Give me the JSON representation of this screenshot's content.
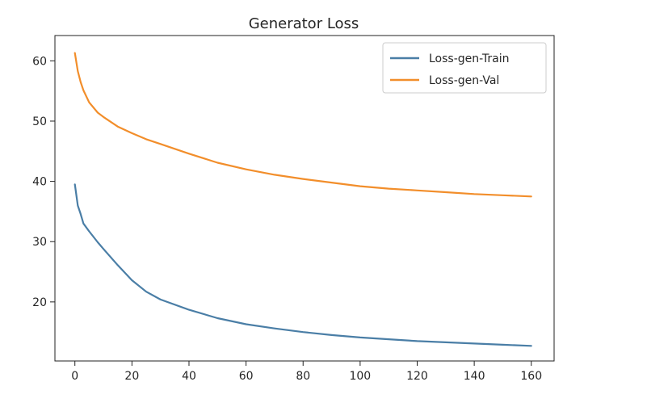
{
  "chart_data": {
    "type": "line",
    "title": "Generator Loss",
    "xlabel": "",
    "ylabel": "",
    "xlim": [
      -7,
      168
    ],
    "ylim": [
      10.2,
      64.2
    ],
    "xticks": [
      0,
      20,
      40,
      60,
      80,
      100,
      120,
      140,
      160
    ],
    "yticks": [
      20,
      30,
      40,
      50,
      60
    ],
    "grid": false,
    "legend_position": "top-right",
    "series": [
      {
        "name": "Loss-gen-Train",
        "color": "#4a7ea6",
        "x": [
          0,
          1,
          2,
          3,
          5,
          8,
          10,
          15,
          20,
          25,
          30,
          40,
          50,
          60,
          70,
          80,
          90,
          100,
          110,
          120,
          130,
          140,
          150,
          160
        ],
        "y": [
          39.5,
          36.0,
          34.6,
          33.0,
          31.7,
          29.9,
          28.8,
          26.1,
          23.6,
          21.7,
          20.4,
          18.7,
          17.3,
          16.3,
          15.6,
          15.0,
          14.5,
          14.1,
          13.8,
          13.5,
          13.3,
          13.1,
          12.9,
          12.7
        ]
      },
      {
        "name": "Loss-gen-Val",
        "color": "#f28e2b",
        "x": [
          0,
          1,
          2,
          3,
          5,
          8,
          10,
          15,
          20,
          25,
          30,
          40,
          50,
          60,
          70,
          80,
          90,
          100,
          110,
          120,
          130,
          140,
          150,
          160
        ],
        "y": [
          61.3,
          58.3,
          56.5,
          55.1,
          53.1,
          51.4,
          50.7,
          49.1,
          48.0,
          47.0,
          46.2,
          44.6,
          43.1,
          42.0,
          41.1,
          40.4,
          39.8,
          39.2,
          38.8,
          38.5,
          38.2,
          37.9,
          37.7,
          37.5
        ]
      }
    ]
  }
}
